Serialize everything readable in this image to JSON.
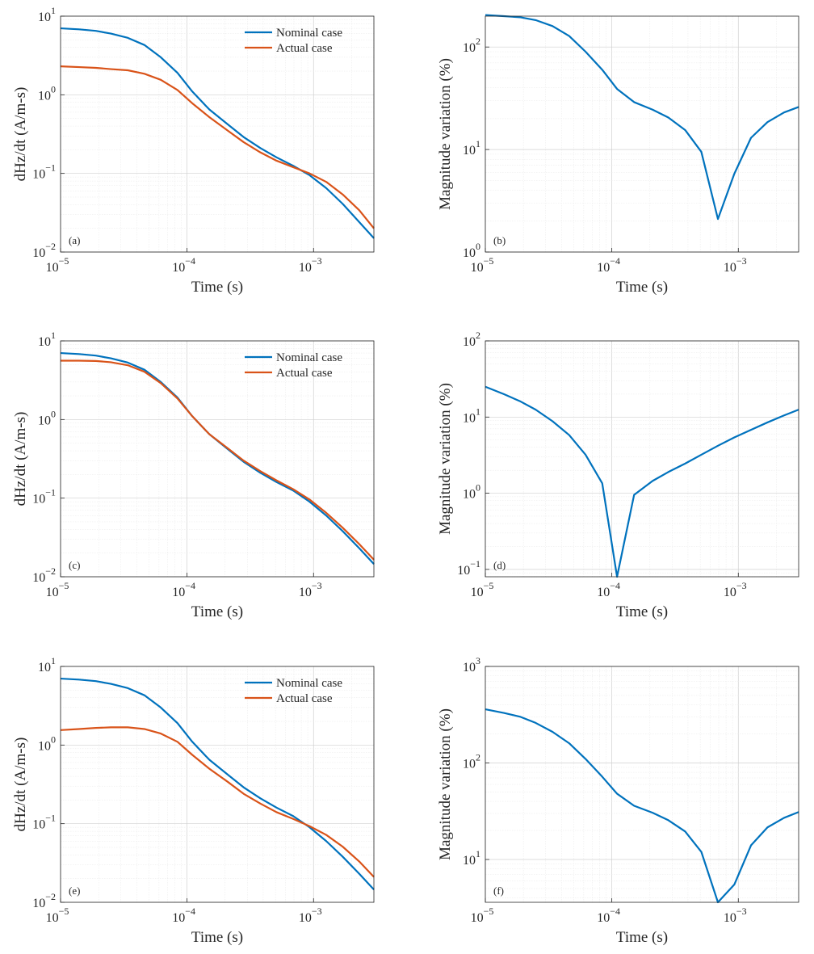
{
  "colors": {
    "nominal": "#0072BD",
    "actual": "#D95319",
    "axis": "#262626"
  },
  "chart_data": [
    {
      "type": "line",
      "tag": "(a)",
      "xlabel": "Time (s)",
      "ylabel": "dHz/dt (A/m-s)",
      "xscale": "log",
      "yscale": "log",
      "xlim": [
        1e-05,
        0.003
      ],
      "ylim": [
        0.01,
        10
      ],
      "xticks": [
        {
          "base": "10",
          "exp": "−5"
        },
        {
          "base": "10",
          "exp": "−4"
        },
        {
          "base": "10",
          "exp": "−3"
        }
      ],
      "yticks": [
        {
          "base": "10",
          "exp": "−2"
        },
        {
          "base": "10",
          "exp": "−1"
        },
        {
          "base": "10",
          "exp": "0"
        },
        {
          "base": "10",
          "exp": "1"
        }
      ],
      "legend": [
        "Nominal case",
        "Actual case"
      ],
      "legend_position": "top-right",
      "series": [
        {
          "name": "Nominal case",
          "color_key": "nominal",
          "x": [
            1e-05,
            1.4e-05,
            1.9e-05,
            2.5e-05,
            3.4e-05,
            4.6e-05,
            6.2e-05,
            8.4e-05,
            0.00011,
            0.00015,
            0.00021,
            0.00028,
            0.00038,
            0.00051,
            0.00069,
            0.00093,
            0.00126,
            0.0017,
            0.0023,
            0.003
          ],
          "y": [
            7.0,
            6.8,
            6.5,
            6.0,
            5.3,
            4.3,
            3.0,
            1.9,
            1.1,
            0.65,
            0.42,
            0.29,
            0.21,
            0.16,
            0.125,
            0.095,
            0.065,
            0.041,
            0.024,
            0.015
          ]
        },
        {
          "name": "Actual case",
          "color_key": "actual",
          "x": [
            1e-05,
            1.4e-05,
            1.9e-05,
            2.5e-05,
            3.4e-05,
            4.6e-05,
            6.2e-05,
            8.4e-05,
            0.00011,
            0.00015,
            0.00021,
            0.00028,
            0.00038,
            0.00051,
            0.00069,
            0.00093,
            0.00126,
            0.0017,
            0.0023,
            0.003
          ],
          "y": [
            2.3,
            2.25,
            2.2,
            2.12,
            2.05,
            1.85,
            1.55,
            1.15,
            0.78,
            0.52,
            0.35,
            0.25,
            0.185,
            0.145,
            0.12,
            0.1,
            0.078,
            0.054,
            0.034,
            0.02
          ]
        }
      ]
    },
    {
      "type": "line",
      "tag": "(b)",
      "xlabel": "Time (s)",
      "ylabel": "Magnitude variation (%)",
      "xscale": "log",
      "yscale": "log",
      "xlim": [
        1e-05,
        0.003
      ],
      "ylim": [
        1,
        200
      ],
      "xticks": [
        {
          "base": "10",
          "exp": "−5"
        },
        {
          "base": "10",
          "exp": "−4"
        },
        {
          "base": "10",
          "exp": "−3"
        }
      ],
      "yticks": [
        {
          "base": "10",
          "exp": "0"
        },
        {
          "base": "10",
          "exp": "1"
        },
        {
          "base": "10",
          "exp": "2"
        }
      ],
      "series": [
        {
          "color_key": "nominal",
          "x": [
            1e-05,
            1.4e-05,
            1.9e-05,
            2.5e-05,
            3.4e-05,
            4.6e-05,
            6.2e-05,
            8.4e-05,
            0.00011,
            0.00015,
            0.00021,
            0.00028,
            0.00038,
            0.00051,
            0.00069,
            0.00093,
            0.00126,
            0.0017,
            0.0023,
            0.003
          ],
          "y": [
            205,
            200,
            195,
            183,
            160,
            128,
            90,
            60,
            39,
            29,
            24.5,
            20.5,
            15.5,
            9.5,
            2.1,
            5.8,
            13,
            18.5,
            23,
            26
          ]
        }
      ]
    },
    {
      "type": "line",
      "tag": "(c)",
      "xlabel": "Time (s)",
      "ylabel": "dHz/dt (A/m-s)",
      "xscale": "log",
      "yscale": "log",
      "xlim": [
        1e-05,
        0.003
      ],
      "ylim": [
        0.01,
        10
      ],
      "xticks": [
        {
          "base": "10",
          "exp": "−5"
        },
        {
          "base": "10",
          "exp": "−4"
        },
        {
          "base": "10",
          "exp": "−3"
        }
      ],
      "yticks": [
        {
          "base": "10",
          "exp": "−2"
        },
        {
          "base": "10",
          "exp": "−1"
        },
        {
          "base": "10",
          "exp": "0"
        },
        {
          "base": "10",
          "exp": "1"
        }
      ],
      "legend": [
        "Nominal case",
        "Actual case"
      ],
      "legend_position": "top-right",
      "series": [
        {
          "name": "Nominal case",
          "color_key": "nominal",
          "x": [
            1e-05,
            1.4e-05,
            1.9e-05,
            2.5e-05,
            3.4e-05,
            4.6e-05,
            6.2e-05,
            8.4e-05,
            0.00011,
            0.00015,
            0.00021,
            0.00028,
            0.00038,
            0.00051,
            0.00069,
            0.00093,
            0.00126,
            0.0017,
            0.0023,
            0.003
          ],
          "y": [
            7.0,
            6.8,
            6.5,
            6.0,
            5.3,
            4.3,
            3.0,
            1.9,
            1.1,
            0.65,
            0.42,
            0.29,
            0.21,
            0.16,
            0.125,
            0.09,
            0.06,
            0.038,
            0.023,
            0.0145
          ]
        },
        {
          "name": "Actual case",
          "color_key": "actual",
          "x": [
            1e-05,
            1.4e-05,
            1.9e-05,
            2.5e-05,
            3.4e-05,
            4.6e-05,
            6.2e-05,
            8.4e-05,
            0.00011,
            0.00015,
            0.00021,
            0.00028,
            0.00038,
            0.00051,
            0.00069,
            0.00093,
            0.00126,
            0.0017,
            0.0023,
            0.003
          ],
          "y": [
            5.6,
            5.6,
            5.55,
            5.35,
            4.9,
            4.05,
            2.9,
            1.85,
            1.1,
            0.65,
            0.43,
            0.3,
            0.22,
            0.168,
            0.13,
            0.096,
            0.065,
            0.042,
            0.026,
            0.0165
          ]
        }
      ]
    },
    {
      "type": "line",
      "tag": "(d)",
      "xlabel": "Time (s)",
      "ylabel": "Magnitude variation (%)",
      "xscale": "log",
      "yscale": "log",
      "xlim": [
        1e-05,
        0.003
      ],
      "ylim": [
        0.08,
        100
      ],
      "xticks": [
        {
          "base": "10",
          "exp": "−5"
        },
        {
          "base": "10",
          "exp": "−4"
        },
        {
          "base": "10",
          "exp": "−3"
        }
      ],
      "yticks": [
        {
          "base": "10",
          "exp": "−1"
        },
        {
          "base": "10",
          "exp": "0"
        },
        {
          "base": "10",
          "exp": "1"
        },
        {
          "base": "10",
          "exp": "2"
        }
      ],
      "series": [
        {
          "color_key": "nominal",
          "x": [
            1e-05,
            1.4e-05,
            1.9e-05,
            2.5e-05,
            3.4e-05,
            4.6e-05,
            6.2e-05,
            8.4e-05,
            0.00011,
            0.00015,
            0.00021,
            0.00028,
            0.00038,
            0.00051,
            0.00069,
            0.00093,
            0.00126,
            0.0017,
            0.0023,
            0.003
          ],
          "y": [
            25,
            20,
            16,
            12.5,
            8.8,
            5.8,
            3.2,
            1.35,
            0.08,
            0.95,
            1.45,
            1.9,
            2.45,
            3.2,
            4.2,
            5.4,
            6.8,
            8.5,
            10.5,
            12.5
          ]
        }
      ]
    },
    {
      "type": "line",
      "tag": "(e)",
      "xlabel": "Time (s)",
      "ylabel": "dHz/dt (A/m-s)",
      "xscale": "log",
      "yscale": "log",
      "xlim": [
        1e-05,
        0.003
      ],
      "ylim": [
        0.01,
        10
      ],
      "xticks": [
        {
          "base": "10",
          "exp": "−5"
        },
        {
          "base": "10",
          "exp": "−4"
        },
        {
          "base": "10",
          "exp": "−3"
        }
      ],
      "yticks": [
        {
          "base": "10",
          "exp": "−2"
        },
        {
          "base": "10",
          "exp": "−1"
        },
        {
          "base": "10",
          "exp": "0"
        },
        {
          "base": "10",
          "exp": "1"
        }
      ],
      "legend": [
        "Nominal case",
        "Actual case"
      ],
      "legend_position": "top-right",
      "series": [
        {
          "name": "Nominal case",
          "color_key": "nominal",
          "x": [
            1e-05,
            1.4e-05,
            1.9e-05,
            2.5e-05,
            3.4e-05,
            4.6e-05,
            6.2e-05,
            8.4e-05,
            0.00011,
            0.00015,
            0.00021,
            0.00028,
            0.00038,
            0.00051,
            0.00069,
            0.00093,
            0.00126,
            0.0017,
            0.0023,
            0.003
          ],
          "y": [
            7.0,
            6.8,
            6.5,
            6.0,
            5.3,
            4.3,
            3.0,
            1.9,
            1.1,
            0.65,
            0.42,
            0.29,
            0.21,
            0.16,
            0.125,
            0.09,
            0.06,
            0.038,
            0.023,
            0.0145
          ]
        },
        {
          "name": "Actual case",
          "color_key": "actual",
          "x": [
            1e-05,
            1.4e-05,
            1.9e-05,
            2.5e-05,
            3.4e-05,
            4.6e-05,
            6.2e-05,
            8.4e-05,
            0.00011,
            0.00015,
            0.00021,
            0.00028,
            0.00038,
            0.00051,
            0.00069,
            0.00093,
            0.00126,
            0.0017,
            0.0023,
            0.003
          ],
          "y": [
            1.55,
            1.6,
            1.65,
            1.68,
            1.68,
            1.6,
            1.4,
            1.1,
            0.75,
            0.5,
            0.34,
            0.24,
            0.18,
            0.14,
            0.115,
            0.093,
            0.072,
            0.051,
            0.033,
            0.021
          ]
        }
      ]
    },
    {
      "type": "line",
      "tag": "(f)",
      "xlabel": "Time (s)",
      "ylabel": "Magnitude variation (%)",
      "xscale": "log",
      "yscale": "log",
      "xlim": [
        1e-05,
        0.003
      ],
      "ylim": [
        3.6,
        1000
      ],
      "xticks": [
        {
          "base": "10",
          "exp": "−5"
        },
        {
          "base": "10",
          "exp": "−4"
        },
        {
          "base": "10",
          "exp": "−3"
        }
      ],
      "yticks": [
        {
          "base": "10",
          "exp": "1"
        },
        {
          "base": "10",
          "exp": "2"
        },
        {
          "base": "10",
          "exp": "3"
        }
      ],
      "series": [
        {
          "color_key": "nominal",
          "x": [
            1e-05,
            1.4e-05,
            1.9e-05,
            2.5e-05,
            3.4e-05,
            4.6e-05,
            6.2e-05,
            8.4e-05,
            0.00011,
            0.00015,
            0.00021,
            0.00028,
            0.00038,
            0.00051,
            0.00069,
            0.00093,
            0.00126,
            0.0017,
            0.0023,
            0.003
          ],
          "y": [
            360,
            330,
            300,
            260,
            210,
            160,
            110,
            72,
            48,
            36,
            30.5,
            25.5,
            19.5,
            12,
            3.6,
            5.5,
            14,
            21.5,
            27,
            31
          ]
        }
      ]
    }
  ]
}
